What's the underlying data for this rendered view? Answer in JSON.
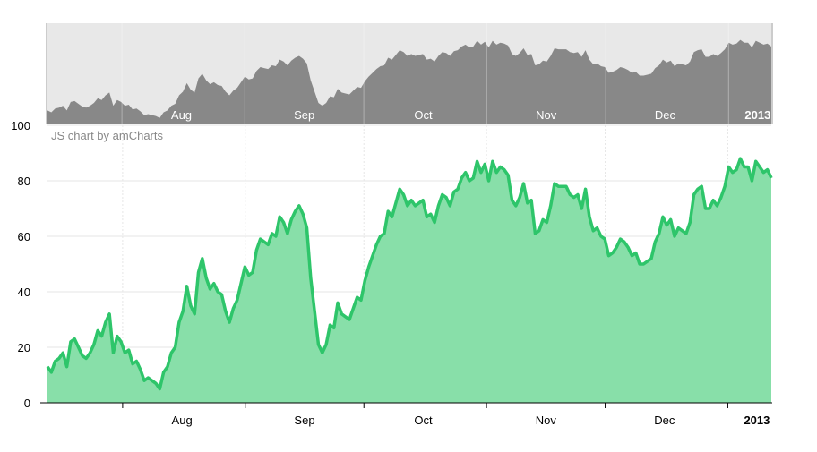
{
  "credits": "JS chart by amCharts",
  "chart_data": {
    "type": "area",
    "title": "",
    "xlabel": "",
    "ylabel": "",
    "ylim": [
      0,
      100
    ],
    "y_ticks": [
      0,
      20,
      40,
      60,
      80,
      100
    ],
    "grid": true,
    "month_labels": [
      {
        "label": "Aug",
        "bold": false
      },
      {
        "label": "Sep",
        "bold": false
      },
      {
        "label": "Oct",
        "bold": false
      },
      {
        "label": "Nov",
        "bold": false
      },
      {
        "label": "Dec",
        "bold": false
      },
      {
        "label": "2013",
        "bold": true
      }
    ],
    "x_start": "2012-07-13",
    "x_end": "2013-01-12",
    "colors": {
      "line": "#2ec56a",
      "fill": "#88dfa9",
      "scroll_fill": "#888888",
      "scroll_bg": "#e8e8e8"
    },
    "series": [
      {
        "values": [
          13,
          11,
          15,
          16,
          18,
          13,
          22,
          23,
          20,
          17,
          16,
          18,
          21,
          26,
          24,
          29,
          32,
          18,
          24,
          22,
          18,
          19,
          14,
          15,
          12,
          8,
          9,
          8,
          7,
          5,
          11,
          13,
          18,
          20,
          29,
          33,
          42,
          35,
          32,
          47,
          52,
          45,
          41,
          43,
          40,
          39,
          33,
          29,
          34,
          37,
          43,
          49,
          46,
          47,
          55,
          59,
          58,
          57,
          61,
          60,
          67,
          65,
          61,
          66,
          69,
          71,
          68,
          63,
          45,
          33,
          21,
          18,
          21,
          28,
          27,
          36,
          32,
          31,
          30,
          34,
          38,
          37,
          44,
          49,
          53,
          57,
          60,
          61,
          69,
          67,
          72,
          77,
          75,
          71,
          73,
          71,
          72,
          73,
          67,
          68,
          65,
          71,
          75,
          74,
          71,
          76,
          77,
          81,
          83,
          80,
          81,
          87,
          83,
          86,
          80,
          87,
          83,
          85,
          84,
          82,
          73,
          71,
          74,
          79,
          72,
          73,
          61,
          62,
          66,
          65,
          71,
          79,
          78,
          78,
          78,
          75,
          74,
          75,
          70,
          77,
          67,
          62,
          63,
          60,
          59,
          53,
          54,
          56,
          59,
          58,
          56,
          53,
          54,
          50,
          50,
          51,
          52,
          58,
          61,
          67,
          64,
          66,
          60,
          63,
          62,
          61,
          65,
          75,
          77,
          78,
          70,
          70,
          73,
          71,
          74,
          78,
          85,
          83,
          84,
          88,
          85,
          85,
          80,
          87,
          85,
          83,
          84,
          81
        ]
      }
    ]
  }
}
